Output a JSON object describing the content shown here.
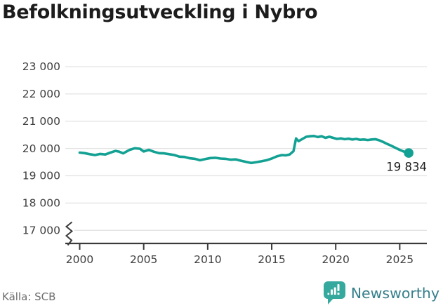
{
  "title": "Befolkningsutveckling i Nybro",
  "source": "Källa: SCB",
  "branding": {
    "label": "Newsworthy"
  },
  "colors": {
    "line": "#13a193",
    "grid": "#e3e3e3",
    "grid17": "#e3e3e3",
    "axis": "#3a3a3a",
    "tick_label": "#3f3f3f",
    "title": "#1c1c1c",
    "source_text": "#6e6e6e",
    "brand_text": "#357f8b",
    "brand_icon": "#36a99e",
    "annotation": "#1c1c1c"
  },
  "chart_data": {
    "type": "line",
    "title": "Befolkningsutveckling i Nybro",
    "xlabel": "",
    "ylabel": "",
    "xlim": [
      2000,
      2025.7
    ],
    "ylim": [
      17000,
      23000
    ],
    "x_ticks": [
      2000,
      2005,
      2010,
      2015,
      2020,
      2025
    ],
    "x_tick_labels": [
      "2000",
      "2005",
      "2010",
      "2015",
      "2020",
      "2025"
    ],
    "y_ticks": [
      17000,
      18000,
      19000,
      20000,
      21000,
      22000,
      23000
    ],
    "y_tick_labels": [
      "17 000",
      "18 000",
      "19 000",
      "20 000",
      "21 000",
      "22 000",
      "23 000"
    ],
    "grid": true,
    "legend": false,
    "axis_break_below": 17000,
    "series": [
      {
        "name": "Befolkning i Nybro",
        "color": "#13a193",
        "points": [
          [
            2000.0,
            19850
          ],
          [
            2000.4,
            19830
          ],
          [
            2000.8,
            19790
          ],
          [
            2001.2,
            19760
          ],
          [
            2001.6,
            19800
          ],
          [
            2002.0,
            19780
          ],
          [
            2002.4,
            19850
          ],
          [
            2002.8,
            19910
          ],
          [
            2003.1,
            19880
          ],
          [
            2003.4,
            19820
          ],
          [
            2003.9,
            19950
          ],
          [
            2004.3,
            20010
          ],
          [
            2004.7,
            19990
          ],
          [
            2005.0,
            19890
          ],
          [
            2005.4,
            19950
          ],
          [
            2005.8,
            19880
          ],
          [
            2006.2,
            19830
          ],
          [
            2006.6,
            19820
          ],
          [
            2007.0,
            19790
          ],
          [
            2007.4,
            19760
          ],
          [
            2007.8,
            19700
          ],
          [
            2008.2,
            19690
          ],
          [
            2008.6,
            19640
          ],
          [
            2009.0,
            19620
          ],
          [
            2009.4,
            19570
          ],
          [
            2009.8,
            19610
          ],
          [
            2010.2,
            19650
          ],
          [
            2010.6,
            19660
          ],
          [
            2011.0,
            19630
          ],
          [
            2011.4,
            19620
          ],
          [
            2011.8,
            19590
          ],
          [
            2012.2,
            19600
          ],
          [
            2012.6,
            19550
          ],
          [
            2013.0,
            19510
          ],
          [
            2013.4,
            19470
          ],
          [
            2013.8,
            19500
          ],
          [
            2014.2,
            19530
          ],
          [
            2014.6,
            19570
          ],
          [
            2015.0,
            19630
          ],
          [
            2015.4,
            19710
          ],
          [
            2015.8,
            19760
          ],
          [
            2016.1,
            19750
          ],
          [
            2016.4,
            19780
          ],
          [
            2016.7,
            19900
          ],
          [
            2016.9,
            20370
          ],
          [
            2017.1,
            20270
          ],
          [
            2017.4,
            20350
          ],
          [
            2017.7,
            20430
          ],
          [
            2018.0,
            20450
          ],
          [
            2018.3,
            20460
          ],
          [
            2018.6,
            20420
          ],
          [
            2018.9,
            20450
          ],
          [
            2019.2,
            20390
          ],
          [
            2019.5,
            20430
          ],
          [
            2019.8,
            20390
          ],
          [
            2020.1,
            20350
          ],
          [
            2020.4,
            20370
          ],
          [
            2020.7,
            20340
          ],
          [
            2021.0,
            20360
          ],
          [
            2021.3,
            20330
          ],
          [
            2021.6,
            20350
          ],
          [
            2021.9,
            20320
          ],
          [
            2022.2,
            20330
          ],
          [
            2022.5,
            20310
          ],
          [
            2022.8,
            20330
          ],
          [
            2023.1,
            20340
          ],
          [
            2023.4,
            20300
          ],
          [
            2023.7,
            20240
          ],
          [
            2024.0,
            20170
          ],
          [
            2024.3,
            20110
          ],
          [
            2024.6,
            20040
          ],
          [
            2024.9,
            19970
          ],
          [
            2025.2,
            19910
          ],
          [
            2025.45,
            19860
          ],
          [
            2025.7,
            19834
          ]
        ]
      }
    ],
    "end_annotation": {
      "x": 2025.7,
      "y": 19834,
      "label": "19 834"
    }
  }
}
